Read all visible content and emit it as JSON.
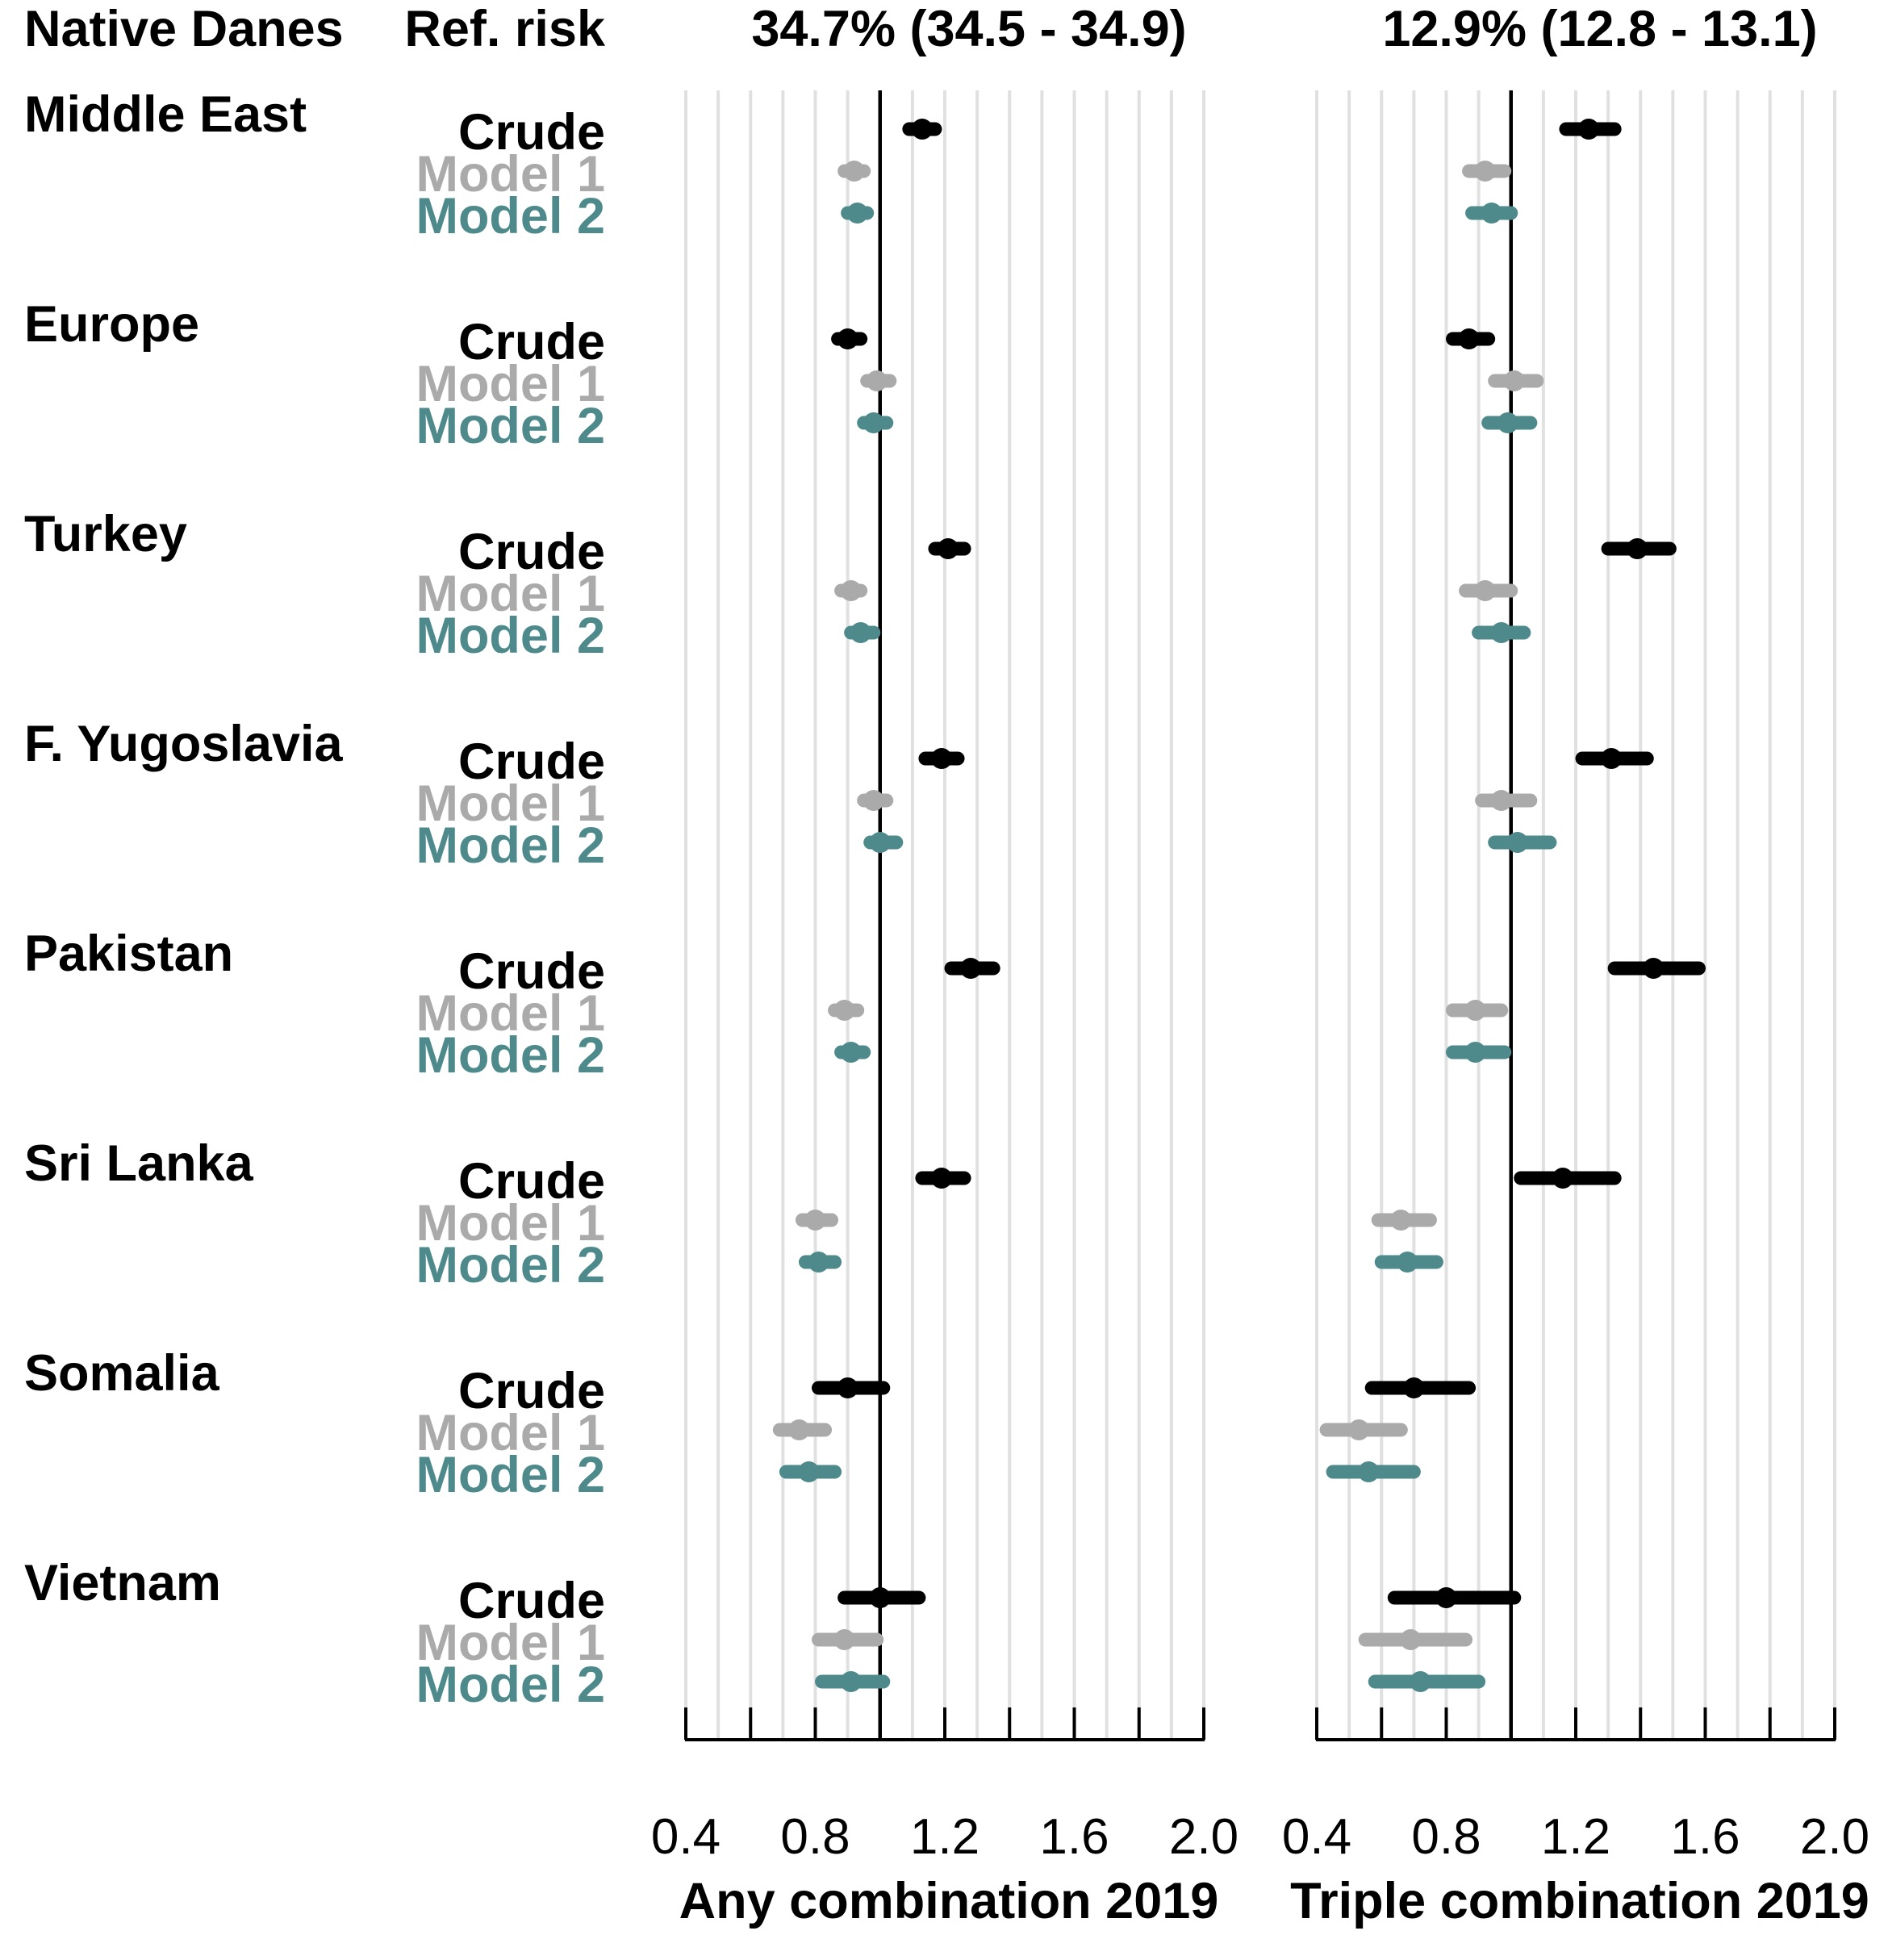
{
  "header": {
    "reference_group": "Native Danes",
    "ref_risk_label": "Ref. risk",
    "panel_ref_risks": [
      "34.7% (34.5 - 34.9)",
      "12.9% (12.8 - 13.1)"
    ]
  },
  "model_labels": [
    "Crude",
    "Model 1",
    "Model 2"
  ],
  "colors": {
    "Crude": "#000000",
    "Model 1": "#aaaaaa",
    "Model 2": "#4e8a8b"
  },
  "chart_data": [
    {
      "type": "forest",
      "xlabel": "Any combination 2019",
      "xlim": [
        0.4,
        2.0
      ],
      "ticks": [
        0.4,
        0.8,
        1.2,
        1.6,
        2.0
      ],
      "reference_line": 1.0,
      "ref_risk": "34.7% (34.5 - 34.9)",
      "groups": [
        {
          "name": "Middle East",
          "estimates": [
            {
              "model": "Crude",
              "est": 1.13,
              "lo": 1.09,
              "hi": 1.17
            },
            {
              "model": "Model 1",
              "est": 0.92,
              "lo": 0.89,
              "hi": 0.95
            },
            {
              "model": "Model 2",
              "est": 0.93,
              "lo": 0.9,
              "hi": 0.96
            }
          ]
        },
        {
          "name": "Europe",
          "estimates": [
            {
              "model": "Crude",
              "est": 0.9,
              "lo": 0.87,
              "hi": 0.94
            },
            {
              "model": "Model 1",
              "est": 0.99,
              "lo": 0.96,
              "hi": 1.03
            },
            {
              "model": "Model 2",
              "est": 0.98,
              "lo": 0.95,
              "hi": 1.02
            }
          ]
        },
        {
          "name": "Turkey",
          "estimates": [
            {
              "model": "Crude",
              "est": 1.21,
              "lo": 1.17,
              "hi": 1.26
            },
            {
              "model": "Model 1",
              "est": 0.91,
              "lo": 0.88,
              "hi": 0.94
            },
            {
              "model": "Model 2",
              "est": 0.94,
              "lo": 0.91,
              "hi": 0.98
            }
          ]
        },
        {
          "name": "F. Yugoslavia",
          "estimates": [
            {
              "model": "Crude",
              "est": 1.19,
              "lo": 1.14,
              "hi": 1.24
            },
            {
              "model": "Model 1",
              "est": 0.98,
              "lo": 0.95,
              "hi": 1.02
            },
            {
              "model": "Model 2",
              "est": 1.0,
              "lo": 0.97,
              "hi": 1.05
            }
          ]
        },
        {
          "name": "Pakistan",
          "estimates": [
            {
              "model": "Crude",
              "est": 1.28,
              "lo": 1.22,
              "hi": 1.35
            },
            {
              "model": "Model 1",
              "est": 0.89,
              "lo": 0.86,
              "hi": 0.93
            },
            {
              "model": "Model 2",
              "est": 0.91,
              "lo": 0.88,
              "hi": 0.95
            }
          ]
        },
        {
          "name": "Sri Lanka",
          "estimates": [
            {
              "model": "Crude",
              "est": 1.19,
              "lo": 1.13,
              "hi": 1.26
            },
            {
              "model": "Model 1",
              "est": 0.8,
              "lo": 0.76,
              "hi": 0.85
            },
            {
              "model": "Model 2",
              "est": 0.81,
              "lo": 0.77,
              "hi": 0.86
            }
          ]
        },
        {
          "name": "Somalia",
          "estimates": [
            {
              "model": "Crude",
              "est": 0.9,
              "lo": 0.81,
              "hi": 1.01
            },
            {
              "model": "Model 1",
              "est": 0.75,
              "lo": 0.69,
              "hi": 0.83
            },
            {
              "model": "Model 2",
              "est": 0.78,
              "lo": 0.71,
              "hi": 0.86
            }
          ]
        },
        {
          "name": "Vietnam",
          "estimates": [
            {
              "model": "Crude",
              "est": 1.0,
              "lo": 0.89,
              "hi": 1.12
            },
            {
              "model": "Model 1",
              "est": 0.89,
              "lo": 0.81,
              "hi": 0.99
            },
            {
              "model": "Model 2",
              "est": 0.91,
              "lo": 0.82,
              "hi": 1.01
            }
          ]
        }
      ]
    },
    {
      "type": "forest",
      "xlabel": "Triple combination 2019",
      "xlim": [
        0.4,
        2.0
      ],
      "ticks": [
        0.4,
        0.8,
        1.2,
        1.6,
        2.0
      ],
      "reference_line": 1.0,
      "ref_risk": "12.9% (12.8 - 13.1)",
      "groups": [
        {
          "name": "Middle East",
          "estimates": [
            {
              "model": "Crude",
              "est": 1.24,
              "lo": 1.17,
              "hi": 1.32
            },
            {
              "model": "Model 1",
              "est": 0.92,
              "lo": 0.87,
              "hi": 0.98
            },
            {
              "model": "Model 2",
              "est": 0.94,
              "lo": 0.88,
              "hi": 1.0
            }
          ]
        },
        {
          "name": "Europe",
          "estimates": [
            {
              "model": "Crude",
              "est": 0.87,
              "lo": 0.82,
              "hi": 0.93
            },
            {
              "model": "Model 1",
              "est": 1.01,
              "lo": 0.95,
              "hi": 1.08
            },
            {
              "model": "Model 2",
              "est": 0.99,
              "lo": 0.93,
              "hi": 1.06
            }
          ]
        },
        {
          "name": "Turkey",
          "estimates": [
            {
              "model": "Crude",
              "est": 1.39,
              "lo": 1.3,
              "hi": 1.49
            },
            {
              "model": "Model 1",
              "est": 0.92,
              "lo": 0.86,
              "hi": 1.0
            },
            {
              "model": "Model 2",
              "est": 0.97,
              "lo": 0.9,
              "hi": 1.04
            }
          ]
        },
        {
          "name": "F. Yugoslavia",
          "estimates": [
            {
              "model": "Crude",
              "est": 1.31,
              "lo": 1.22,
              "hi": 1.42
            },
            {
              "model": "Model 1",
              "est": 0.97,
              "lo": 0.91,
              "hi": 1.06
            },
            {
              "model": "Model 2",
              "est": 1.02,
              "lo": 0.95,
              "hi": 1.12
            }
          ]
        },
        {
          "name": "Pakistan",
          "estimates": [
            {
              "model": "Crude",
              "est": 1.44,
              "lo": 1.32,
              "hi": 1.58
            },
            {
              "model": "Model 1",
              "est": 0.89,
              "lo": 0.82,
              "hi": 0.97
            },
            {
              "model": "Model 2",
              "est": 0.89,
              "lo": 0.82,
              "hi": 0.98
            }
          ]
        },
        {
          "name": "Sri Lanka",
          "estimates": [
            {
              "model": "Crude",
              "est": 1.16,
              "lo": 1.03,
              "hi": 1.32
            },
            {
              "model": "Model 1",
              "est": 0.66,
              "lo": 0.59,
              "hi": 0.75
            },
            {
              "model": "Model 2",
              "est": 0.68,
              "lo": 0.6,
              "hi": 0.77
            }
          ]
        },
        {
          "name": "Somalia",
          "estimates": [
            {
              "model": "Crude",
              "est": 0.7,
              "lo": 0.57,
              "hi": 0.87
            },
            {
              "model": "Model 1",
              "est": 0.53,
              "lo": 0.43,
              "hi": 0.66
            },
            {
              "model": "Model 2",
              "est": 0.56,
              "lo": 0.45,
              "hi": 0.7
            }
          ]
        },
        {
          "name": "Vietnam",
          "estimates": [
            {
              "model": "Crude",
              "est": 0.8,
              "lo": 0.64,
              "hi": 1.01
            },
            {
              "model": "Model 1",
              "est": 0.69,
              "lo": 0.55,
              "hi": 0.86
            },
            {
              "model": "Model 2",
              "est": 0.72,
              "lo": 0.58,
              "hi": 0.9
            }
          ]
        }
      ]
    }
  ]
}
